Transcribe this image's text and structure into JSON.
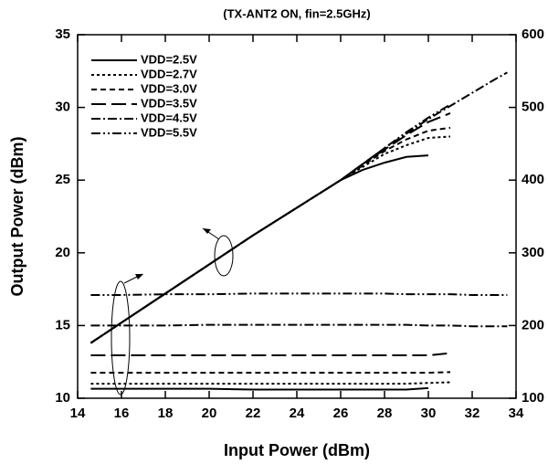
{
  "chart_data": {
    "type": "line",
    "title": "(TX-ANT2 ON, fin=2.5GHz)",
    "xlabel": "Input Power (dBm)",
    "ylabel": "Output Power (dBm)",
    "x": [
      14.6,
      16,
      18,
      20,
      22,
      24,
      26,
      27,
      28,
      29,
      30,
      31,
      32,
      33,
      33.6
    ],
    "xlim": [
      14,
      34
    ],
    "xticks": [
      14,
      16,
      18,
      20,
      22,
      24,
      26,
      28,
      30,
      32,
      34
    ],
    "ylim": [
      10,
      35
    ],
    "yticks": [
      10,
      15,
      20,
      25,
      30,
      35
    ],
    "y2lim": [
      100,
      600
    ],
    "y2ticks": [
      100,
      200,
      300,
      400,
      500,
      600
    ],
    "grid": false,
    "legend": "upper left",
    "color": "#000000",
    "series": [
      {
        "name": "VDD=2.5V",
        "dash": "none",
        "values": [
          13.8,
          15.2,
          17.2,
          19.2,
          21.2,
          23.1,
          25.0,
          25.7,
          26.2,
          26.6,
          26.7,
          null,
          null,
          null,
          null
        ],
        "current": [
          113,
          113,
          113,
          113,
          112,
          112,
          112,
          112,
          112,
          112,
          114,
          null,
          null,
          null,
          null
        ]
      },
      {
        "name": "VDD=2.7V",
        "dash": "3 3",
        "values": [
          13.8,
          15.2,
          17.2,
          19.2,
          21.2,
          23.1,
          25.0,
          25.9,
          26.8,
          27.4,
          27.9,
          28.0,
          null,
          null,
          null
        ],
        "current": [
          120,
          120,
          120,
          120,
          120,
          120,
          120,
          120,
          120,
          120,
          121,
          122,
          null,
          null,
          null
        ]
      },
      {
        "name": "VDD=3.0V",
        "dash": "6 4",
        "values": [
          13.8,
          15.2,
          17.2,
          19.2,
          21.2,
          23.1,
          25.0,
          26.0,
          27.0,
          27.8,
          28.4,
          28.6,
          null,
          null,
          null
        ],
        "current": [
          135,
          135,
          135,
          135,
          135,
          135,
          135,
          135,
          135,
          135,
          135,
          136,
          null,
          null,
          null
        ]
      },
      {
        "name": "VDD=3.5V",
        "dash": "16 6",
        "values": [
          13.8,
          15.2,
          17.2,
          19.2,
          21.2,
          23.1,
          25.0,
          26.1,
          27.1,
          28.1,
          29.0,
          29.6,
          null,
          null,
          null
        ],
        "current": [
          159,
          159,
          159,
          159,
          159,
          159,
          159,
          159,
          159,
          159,
          159,
          162,
          null,
          null,
          null
        ]
      },
      {
        "name": "VDD=4.5V",
        "dash": "10 3 2 3",
        "values": [
          13.8,
          15.2,
          17.2,
          19.2,
          21.2,
          23.1,
          25.0,
          26.1,
          27.2,
          28.2,
          29.2,
          30.1,
          31.0,
          31.9,
          32.4
        ],
        "current": [
          200,
          200,
          200,
          201,
          201,
          201,
          201,
          201,
          201,
          201,
          200,
          200,
          199,
          199,
          199
        ]
      },
      {
        "name": "VDD=5.5V",
        "dash": "10 3 2 3 2 3",
        "values": [
          13.8,
          15.2,
          17.2,
          19.2,
          21.2,
          23.1,
          25.0,
          26.1,
          27.2,
          28.3,
          29.3,
          30.2,
          null,
          null,
          null
        ],
        "current": [
          242,
          242,
          243,
          243,
          244,
          244,
          244,
          244,
          244,
          243,
          243,
          243,
          242,
          242,
          242
        ]
      }
    ]
  }
}
